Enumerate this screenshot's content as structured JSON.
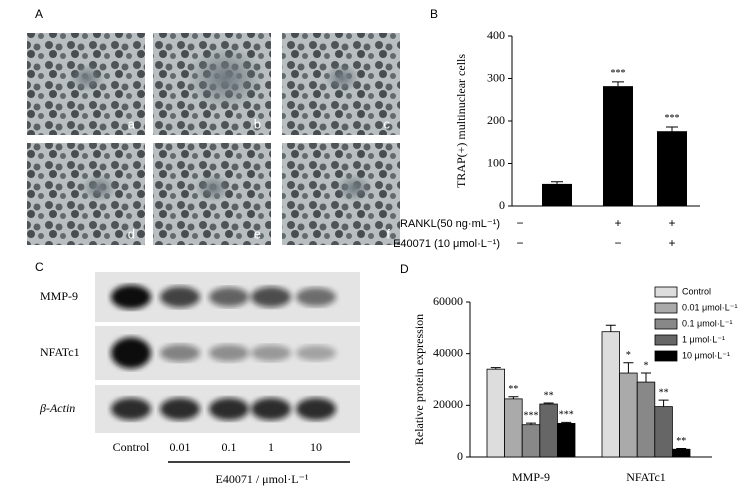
{
  "panel_a": {
    "label": "A",
    "images": [
      "a",
      "b",
      "c",
      "d",
      "e",
      "f"
    ]
  },
  "panel_c": {
    "label": "C",
    "rows": [
      "MMP-9",
      "NFATc1",
      "β-Actin"
    ],
    "lanes": [
      "Control",
      "0.01",
      "0.1",
      "1",
      "10"
    ],
    "xlabel": "E40071 / μmol·L⁻¹"
  },
  "chart_data": [
    {
      "type": "bar",
      "panel_label": "B",
      "ylabel": "TRAP(+) multinuclear cells",
      "categories": [
        null,
        null,
        null
      ],
      "values": [
        52,
        282,
        176
      ],
      "errors": [
        5,
        10,
        10
      ],
      "significance": [
        null,
        "***",
        "***"
      ],
      "color": "#000000",
      "condition_rows": [
        {
          "label": "RANKL(50 ng·mL⁻¹)",
          "marks": [
            "−",
            "+",
            "+"
          ]
        },
        {
          "label": "E40071 (10 μmol·L⁻¹)",
          "marks": [
            "−",
            "−",
            "+"
          ]
        }
      ],
      "ylim": [
        0,
        400
      ],
      "yticks": [
        0,
        100,
        200,
        300,
        400
      ]
    },
    {
      "type": "grouped-bar",
      "panel_label": "D",
      "ylabel": "Relative protein expression",
      "categories": [
        "MMP-9",
        "NFATc1"
      ],
      "series": [
        {
          "name": "Control",
          "color": "#dddddd",
          "values": [
            34000,
            48500
          ],
          "errors": [
            600,
            2500
          ],
          "significance": [
            null,
            null
          ]
        },
        {
          "name": "0.01 μmol·L⁻¹",
          "color": "#aaaaaa",
          "values": [
            22500,
            32500
          ],
          "errors": [
            800,
            4000
          ],
          "significance": [
            "**",
            "*"
          ]
        },
        {
          "name": "0.1 μmol·L⁻¹",
          "color": "#888888",
          "values": [
            12500,
            29000
          ],
          "errors": [
            600,
            3500
          ],
          "significance": [
            "***",
            "*"
          ]
        },
        {
          "name": "1 μmol·L⁻¹",
          "color": "#666666",
          "values": [
            20500,
            19500
          ],
          "errors": [
            400,
            2500
          ],
          "significance": [
            "**",
            "**"
          ]
        },
        {
          "name": "10 μmol·L⁻¹",
          "color": "#000000",
          "values": [
            13000,
            3000
          ],
          "errors": [
            400,
            300
          ],
          "significance": [
            "***",
            "**"
          ]
        }
      ],
      "ylim": [
        0,
        60000
      ],
      "yticks": [
        0,
        20000,
        40000,
        60000
      ],
      "legend": "top-right"
    }
  ]
}
